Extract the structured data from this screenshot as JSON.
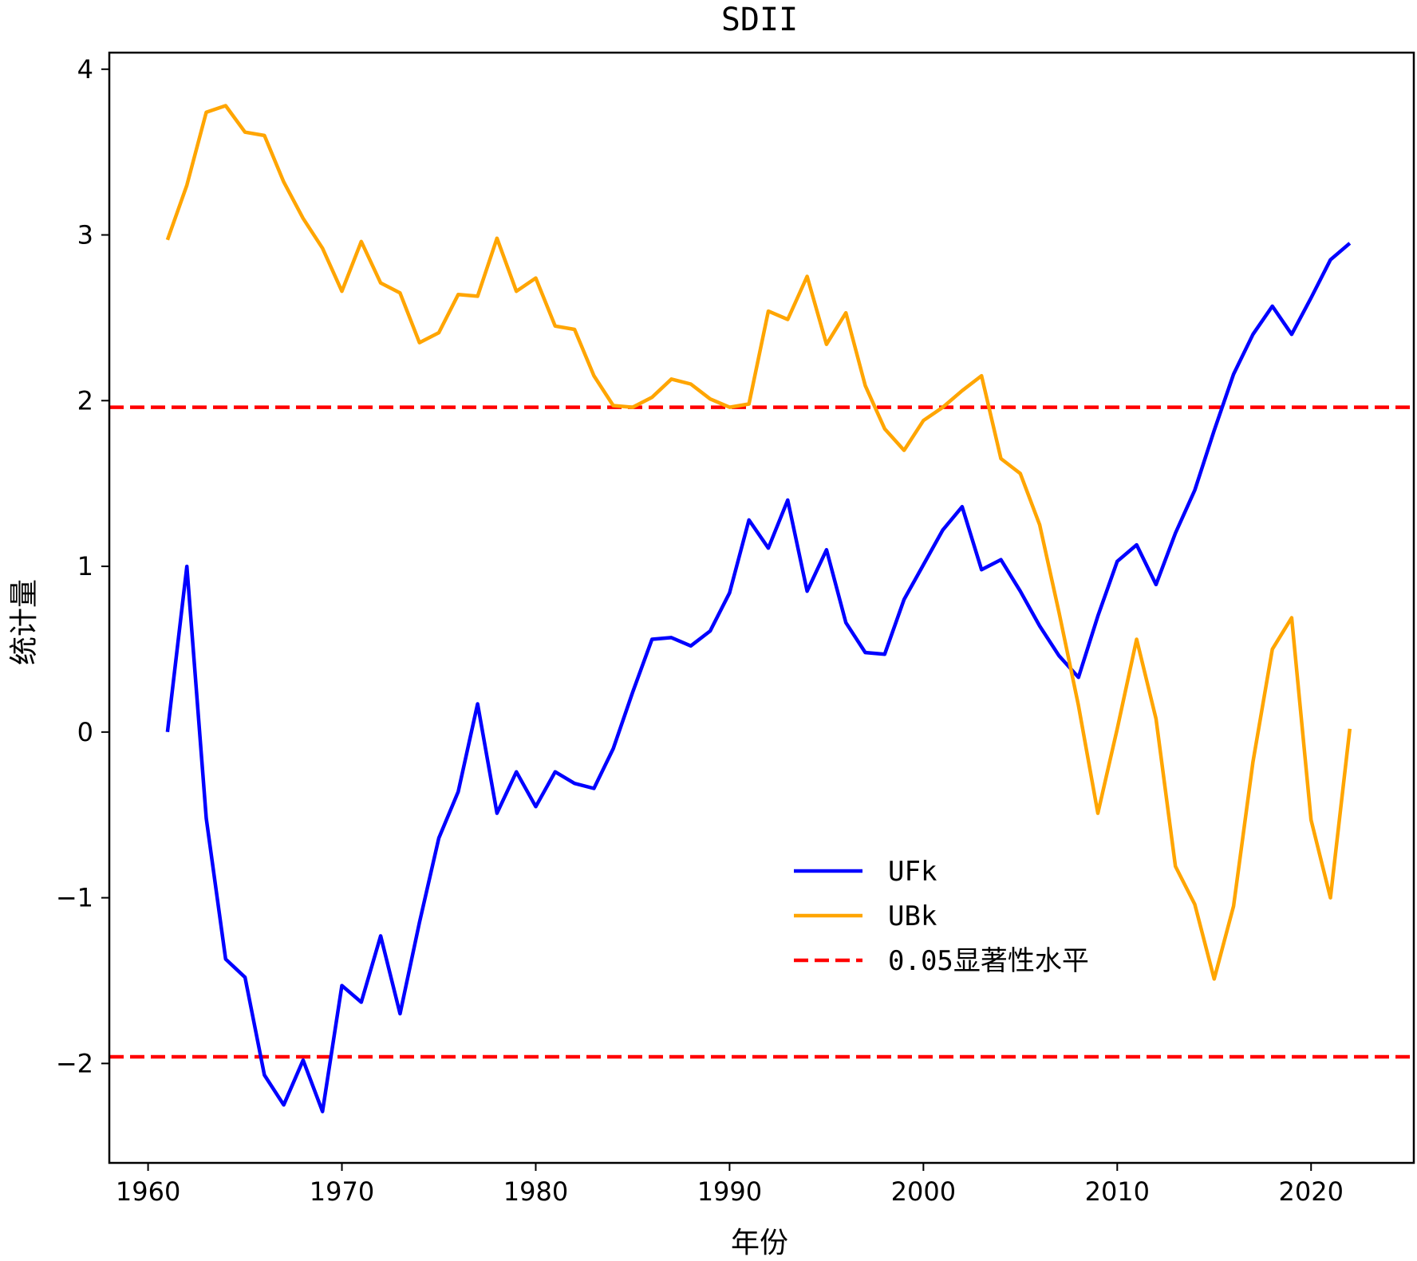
{
  "chart_data": {
    "type": "line",
    "title": "SDII",
    "xlabel": "年份",
    "ylabel": "统计量",
    "xlim": [
      1958,
      2025.3
    ],
    "ylim": [
      -2.6,
      4.1
    ],
    "xticks": [
      1960,
      1970,
      1980,
      1990,
      2000,
      2010,
      2020
    ],
    "yticks": [
      -2,
      -1,
      0,
      1,
      2,
      3,
      4
    ],
    "ytick_labels": [
      "−2",
      "−1",
      "0",
      "1",
      "2",
      "3",
      "4"
    ],
    "x": [
      1961,
      1962,
      1963,
      1964,
      1965,
      1966,
      1967,
      1968,
      1969,
      1970,
      1971,
      1972,
      1973,
      1974,
      1975,
      1976,
      1977,
      1978,
      1979,
      1980,
      1981,
      1982,
      1983,
      1984,
      1985,
      1986,
      1987,
      1988,
      1989,
      1990,
      1991,
      1992,
      1993,
      1994,
      1995,
      1996,
      1997,
      1998,
      1999,
      2000,
      2001,
      2002,
      2003,
      2004,
      2005,
      2006,
      2007,
      2008,
      2009,
      2010,
      2011,
      2012,
      2013,
      2014,
      2015,
      2016,
      2017,
      2018,
      2019,
      2020,
      2021,
      2022
    ],
    "series": [
      {
        "name": "UFk",
        "color": "#0000ff",
        "style": "solid",
        "values": [
          0.0,
          1.0,
          -0.52,
          -1.37,
          -1.48,
          -2.07,
          -2.25,
          -1.98,
          -2.29,
          -1.53,
          -1.63,
          -1.23,
          -1.7,
          -1.15,
          -0.64,
          -0.36,
          0.17,
          -0.49,
          -0.24,
          -0.45,
          -0.24,
          -0.31,
          -0.34,
          -0.1,
          0.24,
          0.56,
          0.57,
          0.52,
          0.61,
          0.84,
          1.28,
          1.11,
          1.4,
          0.85,
          1.1,
          0.66,
          0.48,
          0.47,
          0.8,
          1.01,
          1.22,
          1.36,
          0.98,
          1.04,
          0.85,
          0.64,
          0.46,
          0.33,
          0.7,
          1.03,
          1.13,
          0.89,
          1.2,
          1.46,
          1.82,
          2.16,
          2.4,
          2.57,
          2.4,
          2.62,
          2.85,
          2.95
        ]
      },
      {
        "name": "UBk",
        "color": "#ffa500",
        "style": "solid",
        "values": [
          2.97,
          3.3,
          3.74,
          3.78,
          3.62,
          3.6,
          3.32,
          3.1,
          2.92,
          2.66,
          2.96,
          2.71,
          2.65,
          2.35,
          2.41,
          2.64,
          2.63,
          2.98,
          2.66,
          2.74,
          2.45,
          2.43,
          2.15,
          1.97,
          1.96,
          2.02,
          2.13,
          2.1,
          2.01,
          1.96,
          1.98,
          2.54,
          2.49,
          2.75,
          2.34,
          2.53,
          2.09,
          1.83,
          1.7,
          1.88,
          1.96,
          2.06,
          2.15,
          1.65,
          1.56,
          1.25,
          0.72,
          0.16,
          -0.49,
          0.02,
          0.56,
          0.08,
          -0.81,
          -1.04,
          -1.49,
          -1.05,
          -0.18,
          0.5,
          0.69,
          -0.53,
          -1.0,
          0.02
        ]
      }
    ],
    "reference_lines": [
      {
        "name": "0.05显著性水平",
        "color": "#ff0000",
        "style": "dashed",
        "values": [
          1.96,
          -1.96
        ]
      }
    ],
    "legend": {
      "position": "lower-center",
      "entries": [
        {
          "label": "UFk",
          "color": "#0000ff",
          "style": "solid"
        },
        {
          "label": "UBk",
          "color": "#ffa500",
          "style": "solid"
        },
        {
          "label": "0.05显著性水平",
          "color": "#ff0000",
          "style": "dashed"
        }
      ]
    },
    "grid": false
  }
}
